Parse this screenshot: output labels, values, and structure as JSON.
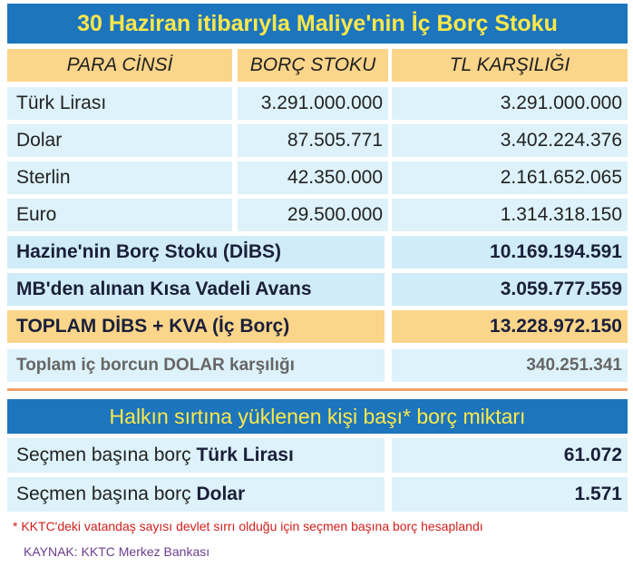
{
  "title": "30 Haziran itibarıyla Maliye'nin İç Borç Stoku",
  "headers": [
    "PARA CİNSİ",
    "BORÇ STOKU",
    "TL KARŞILIĞI"
  ],
  "currencies": [
    {
      "name": "Türk Lirası",
      "stock": "3.291.000.000",
      "tl": "3.291.000.000"
    },
    {
      "name": "Dolar",
      "stock": "87.505.771",
      "tl": "3.402.224.376"
    },
    {
      "name": "Sterlin",
      "stock": "42.350.000",
      "tl": "2.161.652.065"
    },
    {
      "name": "Euro",
      "stock": "29.500.000",
      "tl": "1.314.318.150"
    }
  ],
  "totals": {
    "hazine_label": "Hazine'nin Borç Stoku (DİBS)",
    "hazine_value": "10.169.194.591",
    "mb_label": "MB'den alınan Kısa Vadeli Avans",
    "mb_value": "3.059.777.559",
    "toplam_label": "TOPLAM DİBS + KVA (İç Borç)",
    "toplam_value": "13.228.972.150",
    "dolar_label": "Toplam iç borcun DOLAR karşılığı",
    "dolar_value": "340.251.341"
  },
  "per_person": {
    "title": "Halkın sırtına yüklenen kişi başı* borç miktarı",
    "tl_prefix": "Seçmen başına borç ",
    "tl_currency": "Türk Lirası",
    "tl_value": "61.072",
    "usd_prefix": "Seçmen başına borç ",
    "usd_currency": "Dolar",
    "usd_value": "1.571"
  },
  "footnote": "* KKTC'deki vatandaş sayısı devlet sırrı olduğu için seçmen başına borç hesaplandı",
  "source": "KAYNAK: KKTC Merkez Bankası"
}
